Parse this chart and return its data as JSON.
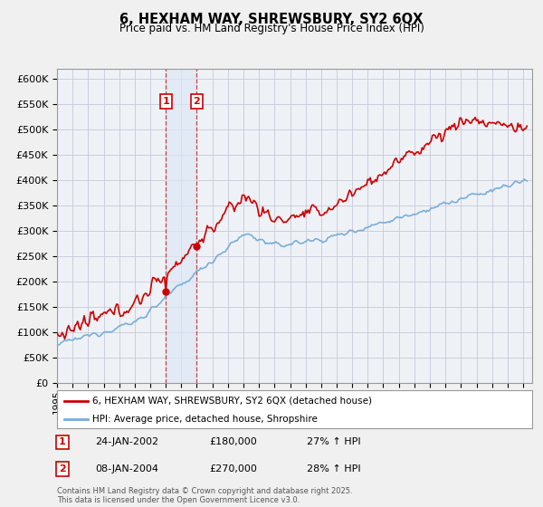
{
  "title": "6, HEXHAM WAY, SHREWSBURY, SY2 6QX",
  "subtitle": "Price paid vs. HM Land Registry's House Price Index (HPI)",
  "legend_line1": "6, HEXHAM WAY, SHREWSBURY, SY2 6QX (detached house)",
  "legend_line2": "HPI: Average price, detached house, Shropshire",
  "red_color": "#cc0000",
  "blue_color": "#7aaddc",
  "shading_color": "#dce8f5",
  "table_rows": [
    [
      "1",
      "24-JAN-2002",
      "£180,000",
      "27% ↑ HPI"
    ],
    [
      "2",
      "08-JAN-2004",
      "£270,000",
      "28% ↑ HPI"
    ]
  ],
  "footnote": "Contains HM Land Registry data © Crown copyright and database right 2025.\nThis data is licensed under the Open Government Licence v3.0.",
  "ylim": [
    0,
    620000
  ],
  "yticks": [
    0,
    50000,
    100000,
    150000,
    200000,
    250000,
    300000,
    350000,
    400000,
    450000,
    500000,
    550000,
    600000
  ],
  "background_color": "#f0f0f0",
  "plot_bg_color": "#f0f4f8"
}
